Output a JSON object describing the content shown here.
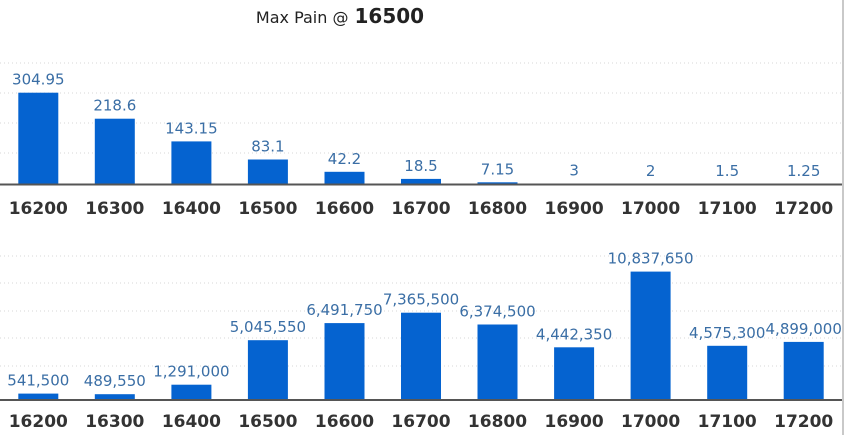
{
  "title": {
    "label": "Max Pain @",
    "value": "16500"
  },
  "colors": {
    "bar": "#0563d0",
    "value_label": "#3a6ea5",
    "tick_label": "#333333",
    "axis": "#555555",
    "grid": "#d7d7d7"
  },
  "chart_data": [
    {
      "type": "bar",
      "title": "",
      "xlabel": "",
      "ylabel": "",
      "grid": true,
      "categories": [
        "16200",
        "16300",
        "16400",
        "16500",
        "16600",
        "16700",
        "16800",
        "16900",
        "17000",
        "17100",
        "17200"
      ],
      "values": [
        304.95,
        218.6,
        143.15,
        83.1,
        42.2,
        18.5,
        7.15,
        3,
        2,
        1.5,
        1.25
      ],
      "value_labels": [
        "304.95",
        "218.6",
        "143.15",
        "83.1",
        "42.2",
        "18.5",
        "7.15",
        "3",
        "2",
        "1.5",
        "1.25"
      ],
      "ylim": [
        0,
        500
      ]
    },
    {
      "type": "bar",
      "title": "",
      "xlabel": "",
      "ylabel": "",
      "grid": true,
      "categories": [
        "16200",
        "16300",
        "16400",
        "16500",
        "16600",
        "16700",
        "16800",
        "16900",
        "17000",
        "17100",
        "17200"
      ],
      "values": [
        541500,
        489550,
        1291000,
        5045550,
        6491750,
        7365500,
        6374500,
        4442350,
        10837650,
        4575300,
        4899000
      ],
      "value_labels": [
        "541,500",
        "489,550",
        "1,291,000",
        "5,045,550",
        "6,491,750",
        "7,365,500",
        "6,374,500",
        "4,442,350",
        "10,837,650",
        "4,575,300",
        "4,899,000"
      ],
      "ylim": [
        0,
        13500000
      ]
    }
  ]
}
